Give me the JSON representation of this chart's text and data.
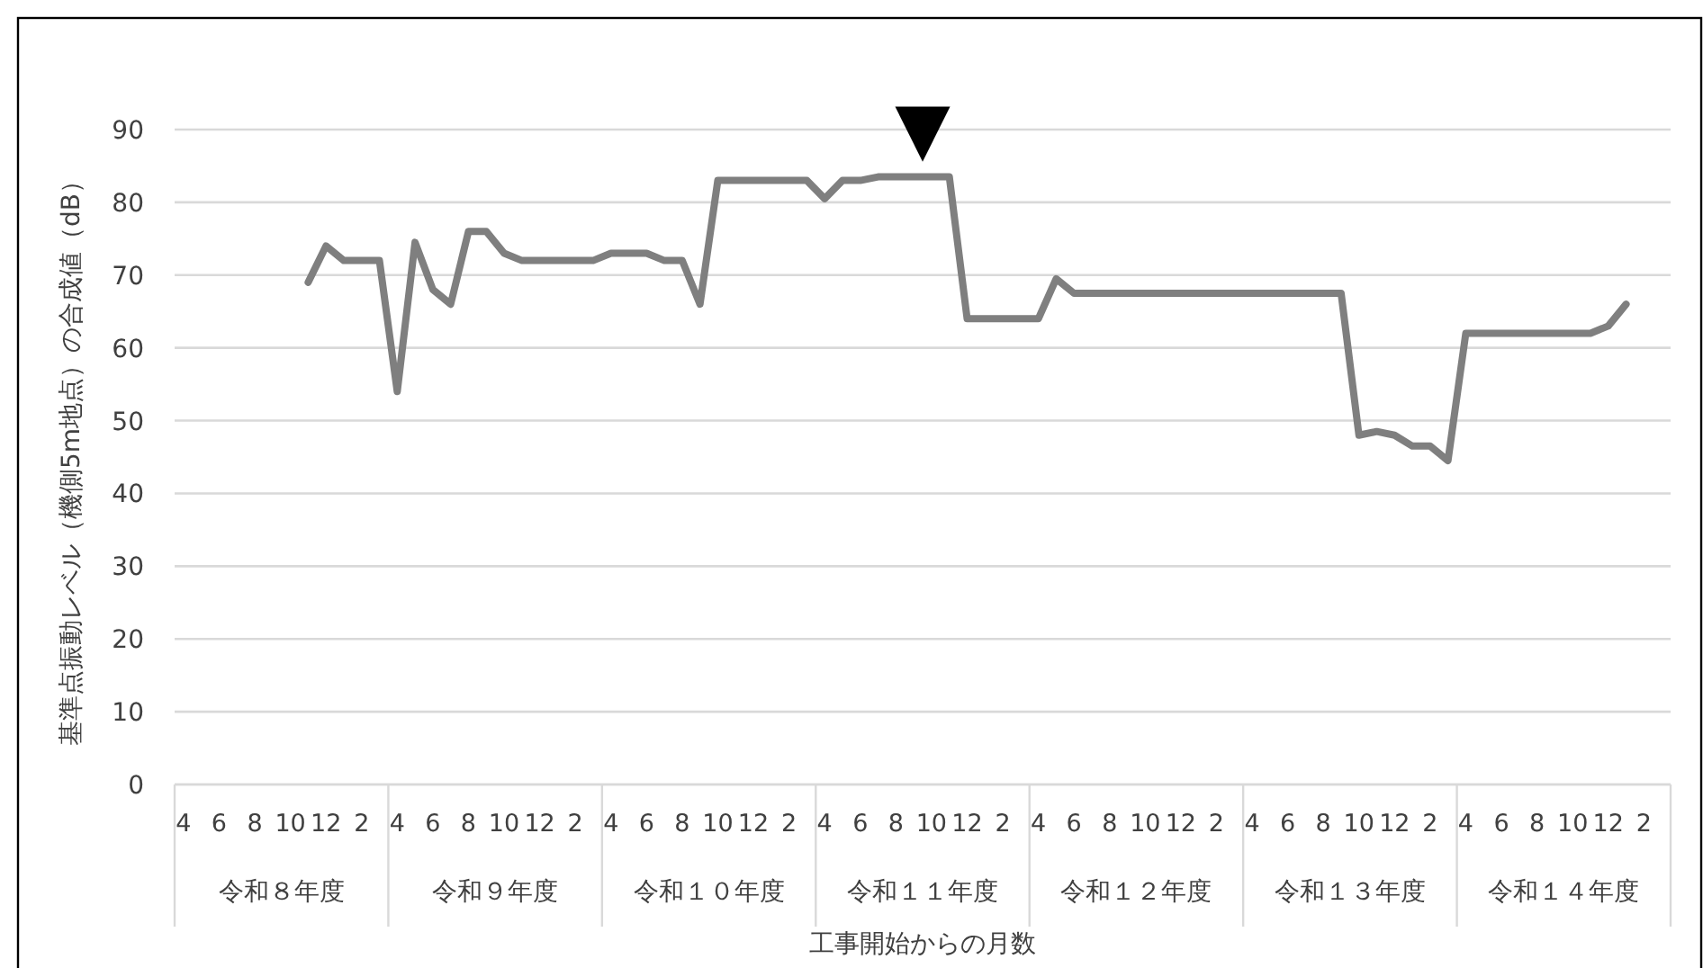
{
  "chart_data": {
    "type": "line",
    "ylabel": "基準点振動レベル（機側5m地点）の合成値（dB）",
    "xlabel": "工事開始からの月数",
    "categories": [
      "4",
      null,
      "6",
      null,
      "8",
      null,
      "10",
      null,
      "12",
      null,
      "2",
      null,
      "4",
      null,
      "6",
      null,
      "8",
      null,
      "10",
      null,
      "12",
      null,
      "2",
      null,
      "4",
      null,
      "6",
      null,
      "8",
      null,
      "10",
      null,
      "12",
      null,
      "2",
      null,
      "4",
      null,
      "6",
      null,
      "8",
      null,
      "10",
      null,
      "12",
      null,
      "2",
      null,
      "4",
      null,
      "6",
      null,
      "8",
      null,
      "10",
      null,
      "12",
      null,
      "2",
      null,
      "4",
      null,
      "6",
      null,
      "8",
      null,
      "10",
      null,
      "12",
      null,
      "2",
      null,
      "4",
      null,
      "6",
      null,
      "8",
      null,
      "10",
      null,
      "12",
      null,
      "2",
      null
    ],
    "series": [
      {
        "color": "#7f7f7f",
        "values": [
          null,
          null,
          null,
          null,
          null,
          null,
          null,
          69,
          74,
          72,
          72,
          72,
          54,
          74.5,
          68,
          66,
          76,
          76,
          73,
          72,
          72,
          72,
          72,
          72,
          73,
          73,
          73,
          72,
          72,
          66,
          83,
          83,
          83,
          83,
          83,
          83,
          80.5,
          83,
          83,
          83.5,
          83.5,
          83.5,
          83.5,
          83.5,
          64,
          64,
          64,
          64,
          64,
          69.5,
          67.5,
          67.5,
          67.5,
          67.5,
          67.5,
          67.5,
          67.5,
          67.5,
          67.5,
          67.5,
          67.5,
          67.5,
          67.5,
          67.5,
          67.5,
          67.5,
          48,
          48.5,
          48,
          46.5,
          46.5,
          44.5,
          62,
          62,
          62,
          62,
          62,
          62,
          62,
          62,
          63,
          66,
          null,
          null
        ]
      }
    ],
    "ylim": [
      0,
      90
    ],
    "yticks": [
      0,
      10,
      20,
      30,
      40,
      50,
      60,
      70,
      80,
      90
    ],
    "grid": "y",
    "line_style": "solid",
    "marker": "none",
    "annotations": [
      "令和８年度",
      "令和９年度",
      "令和１０年度",
      "令和１１年度",
      "令和１２年度",
      "令和１３年度",
      "令和１４年度"
    ],
    "title": "▼"
  }
}
